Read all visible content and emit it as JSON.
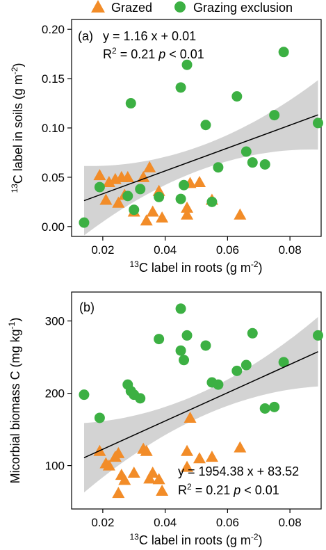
{
  "legend": {
    "grazed": "Grazed",
    "exclusion": "Grazing exclusion",
    "colors": {
      "grazed": "#f28c28",
      "exclusion": "#3cb043"
    }
  },
  "chart_data": [
    {
      "type": "scatter",
      "panel": "(a)",
      "xlabel": "13C label in roots (g m-2)",
      "ylabel": "13C label in soils (g m-2)",
      "xlim": [
        0.01,
        0.09
      ],
      "ylim": [
        -0.01,
        0.21
      ],
      "xticks": [
        "0.02",
        "0.04",
        "0.06",
        "0.08"
      ],
      "yticks": [
        "0.00",
        "0.05",
        "0.10",
        "0.15",
        "0.20"
      ],
      "equation": "y = 1.16 x + 0.01",
      "r2": "R2 = 0.21 p < 0.01",
      "fit": {
        "slope": 1.16,
        "intercept": 0.01,
        "x_range": [
          0.014,
          0.089
        ]
      },
      "series": [
        {
          "name": "Grazed",
          "marker": "triangle",
          "points": [
            [
              0.019,
              0.052
            ],
            [
              0.021,
              0.027
            ],
            [
              0.022,
              0.045
            ],
            [
              0.024,
              0.048
            ],
            [
              0.025,
              0.024
            ],
            [
              0.026,
              0.05
            ],
            [
              0.027,
              0.032
            ],
            [
              0.028,
              0.05
            ],
            [
              0.03,
              0.015
            ],
            [
              0.033,
              0.05
            ],
            [
              0.034,
              0.006
            ],
            [
              0.035,
              0.06
            ],
            [
              0.036,
              0.015
            ],
            [
              0.038,
              0.036
            ],
            [
              0.039,
              0.009
            ],
            [
              0.047,
              0.012
            ],
            [
              0.047,
              0.019
            ],
            [
              0.048,
              0.044
            ],
            [
              0.051,
              0.045
            ],
            [
              0.055,
              0.027
            ],
            [
              0.064,
              0.012
            ]
          ]
        },
        {
          "name": "Grazing exclusion",
          "marker": "circle",
          "points": [
            [
              0.014,
              0.004
            ],
            [
              0.019,
              0.04
            ],
            [
              0.028,
              0.031
            ],
            [
              0.029,
              0.125
            ],
            [
              0.03,
              0.017
            ],
            [
              0.032,
              0.038
            ],
            [
              0.038,
              0.03
            ],
            [
              0.045,
              0.028
            ],
            [
              0.045,
              0.141
            ],
            [
              0.046,
              0.042
            ],
            [
              0.047,
              0.164
            ],
            [
              0.053,
              0.103
            ],
            [
              0.055,
              0.025
            ],
            [
              0.057,
              0.06
            ],
            [
              0.063,
              0.132
            ],
            [
              0.066,
              0.076
            ],
            [
              0.068,
              0.065
            ],
            [
              0.072,
              0.063
            ],
            [
              0.075,
              0.113
            ],
            [
              0.078,
              0.177
            ],
            [
              0.089,
              0.105
            ]
          ]
        }
      ]
    },
    {
      "type": "scatter",
      "panel": "(b)",
      "xlabel": "13C label in roots (g m-2)",
      "ylabel": "Micorbial biomass C (mg kg-1)",
      "xlim": [
        0.01,
        0.09
      ],
      "ylim": [
        40,
        340
      ],
      "xticks": [
        "0.02",
        "0.04",
        "0.06",
        "0.08"
      ],
      "yticks": [
        "100",
        "200",
        "300"
      ],
      "equation": "y = 1954.38 x + 83.52",
      "r2": "R2 = 0.21 p < 0.01",
      "fit": {
        "slope": 1954.38,
        "intercept": 83.52,
        "x_range": [
          0.014,
          0.089
        ]
      },
      "series": [
        {
          "name": "Grazed",
          "marker": "triangle",
          "points": [
            [
              0.019,
              120
            ],
            [
              0.021,
              103
            ],
            [
              0.022,
              100
            ],
            [
              0.024,
              112
            ],
            [
              0.025,
              117
            ],
            [
              0.025,
              62
            ],
            [
              0.026,
              87
            ],
            [
              0.027,
              80
            ],
            [
              0.03,
              90
            ],
            [
              0.033,
              123
            ],
            [
              0.034,
              120
            ],
            [
              0.035,
              82
            ],
            [
              0.036,
              90
            ],
            [
              0.038,
              81
            ],
            [
              0.039,
              65
            ],
            [
              0.047,
              120
            ],
            [
              0.047,
              98
            ],
            [
              0.048,
              166
            ],
            [
              0.051,
              110
            ],
            [
              0.055,
              112
            ],
            [
              0.064,
              125
            ]
          ]
        },
        {
          "name": "Grazing exclusion",
          "marker": "circle",
          "points": [
            [
              0.014,
              198
            ],
            [
              0.019,
              166
            ],
            [
              0.028,
              212
            ],
            [
              0.029,
              203
            ],
            [
              0.03,
              198
            ],
            [
              0.032,
              193
            ],
            [
              0.038,
              275
            ],
            [
              0.045,
              317
            ],
            [
              0.045,
              259
            ],
            [
              0.046,
              246
            ],
            [
              0.047,
              280
            ],
            [
              0.053,
              266
            ],
            [
              0.055,
              215
            ],
            [
              0.057,
              212
            ],
            [
              0.063,
              231
            ],
            [
              0.066,
              239
            ],
            [
              0.068,
              283
            ],
            [
              0.072,
              179
            ],
            [
              0.075,
              181
            ],
            [
              0.078,
              243
            ],
            [
              0.089,
              280
            ]
          ]
        }
      ]
    }
  ]
}
